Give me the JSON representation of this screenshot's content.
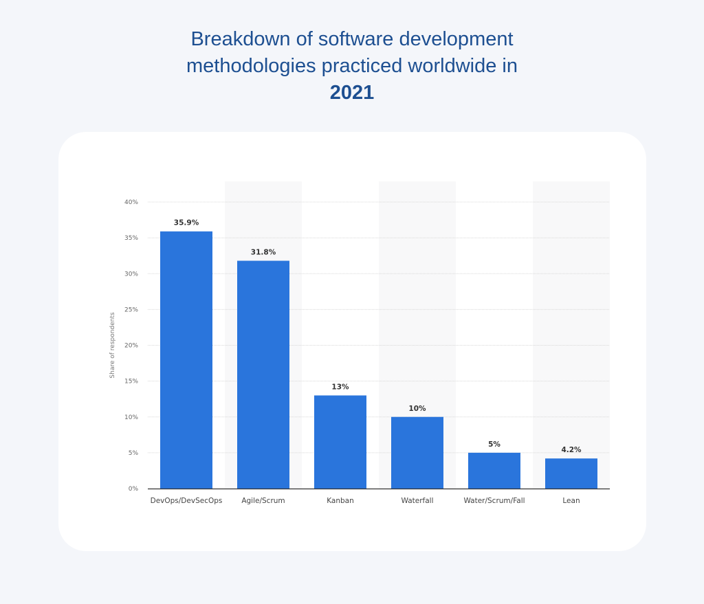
{
  "title": {
    "line1": "Breakdown of software development",
    "line2": "methodologies practiced worldwide in",
    "year": "2021"
  },
  "chart_data": {
    "type": "bar",
    "title": "Breakdown of software development methodologies practiced worldwide in 2021",
    "categories": [
      "DevOps/DevSecOps",
      "Agile/Scrum",
      "Kanban",
      "Waterfall",
      "Water/Scrum/Fall",
      "Lean"
    ],
    "values": [
      35.9,
      31.8,
      13,
      10,
      5,
      4.2
    ],
    "data_labels": [
      "35.9%",
      "31.8%",
      "13%",
      "10%",
      "5%",
      "4.2%"
    ],
    "xlabel": "",
    "ylabel": "Share of respondents",
    "ylim": [
      0,
      40
    ],
    "yticks": [
      "0%",
      "5%",
      "10%",
      "15%",
      "20%",
      "25%",
      "30%",
      "35%",
      "40%"
    ],
    "grid": true,
    "bar_color": "#2a75dc"
  }
}
